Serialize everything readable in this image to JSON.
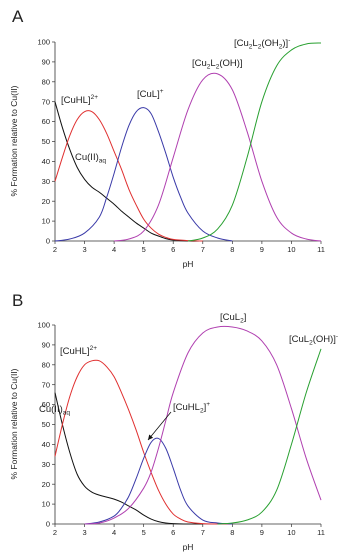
{
  "chart_data": [
    {
      "type": "line",
      "panel_label": "A",
      "xlabel": "pH",
      "ylabel": "% Formation relative to Cu(II)",
      "xlim": [
        2,
        11
      ],
      "ylim": [
        0,
        100
      ],
      "xticks": [
        2,
        3,
        4,
        5,
        6,
        7,
        8,
        9,
        10,
        11
      ],
      "yticks": [
        0,
        10,
        20,
        30,
        40,
        50,
        60,
        70,
        80,
        90,
        100
      ],
      "grid": false,
      "legend": "none",
      "series": [
        {
          "key": "cu_aq",
          "color": "#111111",
          "x": [
            2,
            2.25,
            2.5,
            2.75,
            3,
            3.25,
            3.5,
            3.75,
            4,
            4.25,
            4.5,
            4.75,
            5,
            5.25,
            5.5,
            5.75,
            6,
            6.5,
            7
          ],
          "y": [
            70,
            57,
            46,
            37,
            31,
            27,
            24.5,
            21.5,
            18.5,
            15,
            12,
            9,
            6.5,
            4,
            2.5,
            1.2,
            0.5,
            0,
            0
          ]
        },
        {
          "key": "cuhl",
          "color": "#e03030",
          "x": [
            2,
            2.25,
            2.5,
            2.75,
            3,
            3.25,
            3.5,
            3.75,
            4,
            4.25,
            4.5,
            4.75,
            5,
            5.25,
            5.5,
            5.75,
            6,
            6.5,
            7
          ],
          "y": [
            30,
            42,
            53,
            61,
            65,
            65,
            61,
            54,
            45,
            36,
            26,
            18,
            11,
            6.5,
            3.5,
            1.8,
            0.8,
            0.2,
            0
          ]
        },
        {
          "key": "cul",
          "color": "#3a3aa8",
          "x": [
            2,
            2.5,
            3,
            3.5,
            3.75,
            4,
            4.25,
            4.5,
            4.75,
            5,
            5.25,
            5.5,
            5.75,
            6,
            6.25,
            6.5,
            7,
            7.5,
            8
          ],
          "y": [
            0,
            1,
            4,
            12,
            22,
            34,
            47,
            58,
            65,
            67,
            64,
            55,
            44,
            32,
            22,
            14,
            5,
            1.5,
            0
          ]
        },
        {
          "key": "cu2l2oh",
          "color": "#b040b0",
          "x": [
            4,
            4.5,
            5,
            5.5,
            6,
            6.5,
            7,
            7.5,
            8,
            8.5,
            9,
            9.5,
            10,
            10.5,
            11
          ],
          "y": [
            0,
            1,
            5,
            18,
            42,
            66,
            81,
            84,
            76,
            55,
            30,
            12,
            4,
            1,
            0
          ]
        },
        {
          "key": "cu2l2oh2",
          "color": "#28a030",
          "x": [
            6.5,
            7,
            7.5,
            8,
            8.5,
            9,
            9.5,
            10,
            10.5,
            11
          ],
          "y": [
            0,
            1.5,
            6,
            18,
            42,
            70,
            88,
            96,
            99,
            99.5
          ]
        }
      ],
      "annotations": [
        {
          "text": "[CuHL]",
          "sup": "2+"
        },
        {
          "text": "[CuL]",
          "sup": "+"
        },
        {
          "text": "[Cu",
          "sub1": "2",
          "mid": "L",
          "sub2": "2",
          "tail": "(OH)]"
        },
        {
          "text": "[Cu",
          "sub1": "2",
          "mid": "L",
          "sub2": "2",
          "tail": "(OH",
          "sub3": "2",
          "tail2": ")]",
          "sup": "-"
        },
        {
          "text": "Cu(II)",
          "sub": "aq"
        }
      ]
    },
    {
      "type": "line",
      "panel_label": "B",
      "xlabel": "pH",
      "ylabel": "% Formation relative to Cu(II)",
      "xlim": [
        2,
        11
      ],
      "ylim": [
        0,
        100
      ],
      "xticks": [
        2,
        3,
        4,
        5,
        6,
        7,
        8,
        9,
        10,
        11
      ],
      "yticks": [
        0,
        10,
        20,
        30,
        40,
        50,
        60,
        70,
        80,
        90,
        100
      ],
      "grid": false,
      "legend": "none",
      "series": [
        {
          "key": "cu_aq",
          "color": "#111111",
          "x": [
            2,
            2.25,
            2.5,
            2.75,
            3,
            3.25,
            3.5,
            3.75,
            4,
            4.25,
            4.5,
            4.75,
            5,
            5.25,
            5.5,
            5.75,
            6,
            6.5,
            7
          ],
          "y": [
            66,
            50,
            36,
            25,
            19,
            16,
            14.5,
            13.5,
            12.5,
            11,
            9,
            7,
            4.5,
            2.5,
            1.2,
            0.5,
            0.2,
            0,
            0
          ]
        },
        {
          "key": "cuhl",
          "color": "#e03030",
          "x": [
            2,
            2.25,
            2.5,
            2.75,
            3,
            3.25,
            3.5,
            3.75,
            4,
            4.25,
            4.5,
            4.75,
            5,
            5.25,
            5.5,
            5.75,
            6,
            6.25,
            6.5,
            7,
            7.5,
            8
          ],
          "y": [
            34,
            50,
            64,
            74,
            80,
            82,
            82,
            79,
            74,
            66,
            57,
            47,
            36,
            26,
            17,
            10,
            5,
            2.5,
            1,
            0.2,
            0,
            0
          ]
        },
        {
          "key": "culh2",
          "color": "#3a3aa8",
          "x": [
            3,
            3.5,
            4,
            4.25,
            4.5,
            4.75,
            5,
            5.25,
            5.5,
            5.75,
            6,
            6.25,
            6.5,
            7,
            7.5,
            8
          ],
          "y": [
            0,
            1,
            4,
            8,
            14,
            23,
            33,
            41,
            43,
            38,
            28,
            17,
            9,
            2,
            0.5,
            0
          ]
        },
        {
          "key": "cul2",
          "color": "#b040b0",
          "x": [
            3,
            3.5,
            4,
            4.5,
            5,
            5.25,
            5.5,
            5.75,
            6,
            6.5,
            7,
            7.5,
            8,
            8.5,
            9,
            9.5,
            10,
            10.5,
            11
          ],
          "y": [
            0,
            0.5,
            3,
            8,
            18,
            26,
            38,
            52,
            66,
            86,
            96,
            99,
            99,
            97,
            92,
            80,
            58,
            33,
            12
          ]
        },
        {
          "key": "cul2oh",
          "color": "#28a030",
          "x": [
            7.5,
            8,
            8.5,
            9,
            9.5,
            10,
            10.5,
            11
          ],
          "y": [
            0,
            0.5,
            2,
            6,
            17,
            40,
            66,
            88
          ]
        }
      ],
      "annotations": [
        {
          "text": "[CuHL]",
          "sup": "2+"
        },
        {
          "text": "[CuL",
          "sub": "2",
          "tail": "]"
        },
        {
          "text": "[CuL",
          "sub": "2",
          "tail": "(OH)]",
          "sup": "-"
        },
        {
          "text": "[CuHL",
          "sub": "2",
          "tail": "]",
          "sup": "+"
        },
        {
          "text": "Cu(II)",
          "sub": "aq"
        }
      ]
    }
  ]
}
